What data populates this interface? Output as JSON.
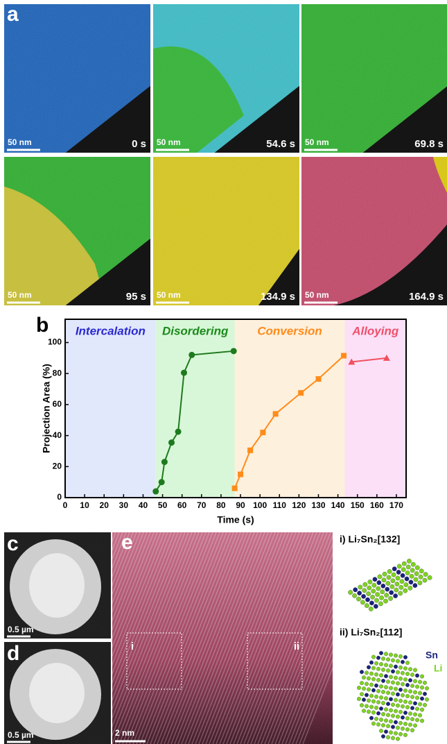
{
  "panels": {
    "a": {
      "label": "a",
      "frames": [
        {
          "scale": "50 nm",
          "time": "0 s"
        },
        {
          "scale": "50 nm",
          "time": "54.6 s"
        },
        {
          "scale": "50 nm",
          "time": "69.8 s"
        },
        {
          "scale": "50 nm",
          "time": "95 s"
        },
        {
          "scale": "50 nm",
          "time": "134.9 s"
        },
        {
          "scale": "50 nm",
          "time": "164.9 s"
        }
      ]
    },
    "c": {
      "label": "c",
      "scale": "0.5 µm"
    },
    "d": {
      "label": "d",
      "scale": "0.5 µm"
    },
    "e": {
      "label": "e",
      "scale": "2 nm",
      "boxes": [
        "i",
        "ii"
      ]
    },
    "structures": [
      {
        "title": "i) Li₇Sn₂[132]"
      },
      {
        "title": "ii) Li₇Sn₂[112]",
        "legend": [
          "Sn",
          "Li"
        ]
      }
    ]
  },
  "chart_data": {
    "type": "line",
    "label": "b",
    "xlabel": "Time (s)",
    "ylabel": "Projection Area (%)",
    "xlim": [
      0,
      175
    ],
    "ylim": [
      0,
      115
    ],
    "xticks": [
      0,
      10,
      20,
      30,
      40,
      50,
      60,
      70,
      80,
      90,
      100,
      110,
      120,
      130,
      140,
      150,
      160,
      170
    ],
    "yticks": [
      0,
      20,
      40,
      60,
      80,
      100
    ],
    "regions": [
      {
        "name": "Intercalation",
        "start": 0,
        "end": 46.5,
        "color": "#e2e8fb",
        "text_color": "#2a2ad0"
      },
      {
        "name": "Disordering",
        "start": 46.5,
        "end": 87,
        "color": "#d8f7d8",
        "text_color": "#1a8a1a"
      },
      {
        "name": "Conversion",
        "start": 87,
        "end": 143.5,
        "color": "#fdf0dd",
        "text_color": "#ff8a1a"
      },
      {
        "name": "Alloying",
        "start": 143.5,
        "end": 175,
        "color": "#fbe0f8",
        "text_color": "#f0506a"
      }
    ],
    "series": [
      {
        "color": "#1e7a1e",
        "marker": "circle",
        "x": [
          46.5,
          49.5,
          51,
          54.6,
          58,
          61,
          65,
          86.5
        ],
        "values": [
          4,
          10,
          23,
          35.5,
          42.5,
          80.5,
          92,
          94.5
        ]
      },
      {
        "color": "#ff8c1a",
        "marker": "square",
        "x": [
          87,
          90,
          95,
          101.5,
          108,
          121,
          130,
          143
        ],
        "values": [
          6,
          15,
          30.5,
          42,
          54,
          67.5,
          76.5,
          91.5
        ]
      },
      {
        "color": "#f0505e",
        "marker": "triangle",
        "x": [
          147,
          165
        ],
        "values": [
          87.5,
          90
        ]
      }
    ]
  }
}
